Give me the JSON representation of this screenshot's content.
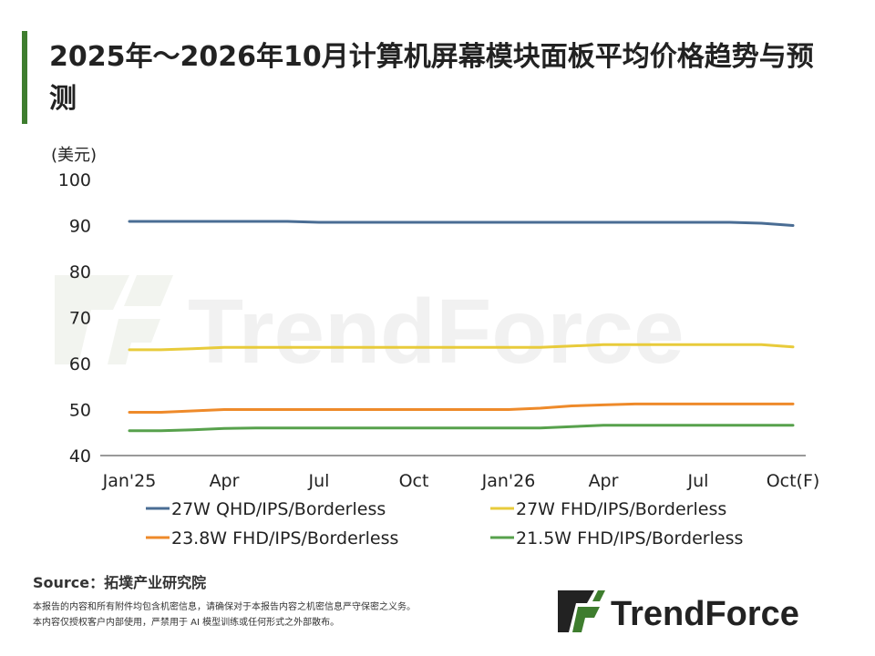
{
  "title": "2025年～2026年10月计算机屏幕模块面板平均价格趋势与预测",
  "footer": {
    "source": "Source：拓墣产业研究院",
    "note1": "本报告的内容和所有附件均包含机密信息，请确保对于本报告内容之机密信息严守保密之义务。",
    "note2": "本内容仅授权客户内部使用，严禁用于 AI 模型训练或任何形式之外部散布。"
  },
  "watermark": "TrendForce",
  "logo_text": "TrendForce",
  "colors": {
    "title_bar": "#3e7d2e",
    "logo_green": "#3e7d2e",
    "series": [
      "#4a6d94",
      "#e8cb3b",
      "#ee8a2a",
      "#57a14c"
    ]
  },
  "chart_data": {
    "type": "line",
    "ylabel": "(美元)",
    "ylim": [
      40,
      100
    ],
    "yticks": [
      40,
      50,
      60,
      70,
      80,
      90,
      100
    ],
    "grid": false,
    "x": [
      "2025-01",
      "2025-02",
      "2025-03",
      "2025-04",
      "2025-05",
      "2025-06",
      "2025-07",
      "2025-08",
      "2025-09",
      "2025-10",
      "2025-11",
      "2025-12",
      "2026-01",
      "2026-02",
      "2026-03",
      "2026-04",
      "2026-05",
      "2026-06",
      "2026-07",
      "2026-08",
      "2026-09",
      "2026-10"
    ],
    "xtick_labels": [
      {
        "x": "2025-01",
        "label": "Jan'25"
      },
      {
        "x": "2025-04",
        "label": "Apr"
      },
      {
        "x": "2025-07",
        "label": "Jul"
      },
      {
        "x": "2025-10",
        "label": "Oct"
      },
      {
        "x": "2026-01",
        "label": "Jan'26"
      },
      {
        "x": "2026-04",
        "label": "Apr"
      },
      {
        "x": "2026-07",
        "label": "Jul"
      },
      {
        "x": "2026-10",
        "label": "Oct(F)"
      }
    ],
    "legend_position": "bottom",
    "series": [
      {
        "name": "27W QHD/IPS/Borderless",
        "values": [
          90.9,
          90.9,
          90.9,
          90.9,
          90.9,
          90.9,
          90.7,
          90.7,
          90.7,
          90.7,
          90.7,
          90.7,
          90.7,
          90.7,
          90.7,
          90.7,
          90.7,
          90.7,
          90.7,
          90.7,
          90.5,
          90.0
        ]
      },
      {
        "name": "27W FHD/IPS/Borderless",
        "values": [
          63.0,
          63.0,
          63.2,
          63.5,
          63.5,
          63.5,
          63.5,
          63.5,
          63.5,
          63.5,
          63.5,
          63.5,
          63.5,
          63.5,
          63.8,
          64.1,
          64.1,
          64.1,
          64.1,
          64.1,
          64.1,
          63.6
        ]
      },
      {
        "name": "23.8W FHD/IPS/Borderless",
        "values": [
          49.4,
          49.4,
          49.7,
          50.0,
          50.0,
          50.0,
          50.0,
          50.0,
          50.0,
          50.0,
          50.0,
          50.0,
          50.0,
          50.3,
          50.8,
          51.0,
          51.2,
          51.2,
          51.2,
          51.2,
          51.2,
          51.2
        ]
      },
      {
        "name": "21.5W FHD/IPS/Borderless",
        "values": [
          45.4,
          45.4,
          45.6,
          45.9,
          46.0,
          46.0,
          46.0,
          46.0,
          46.0,
          46.0,
          46.0,
          46.0,
          46.0,
          46.0,
          46.3,
          46.6,
          46.6,
          46.6,
          46.6,
          46.6,
          46.6,
          46.6
        ]
      }
    ]
  }
}
